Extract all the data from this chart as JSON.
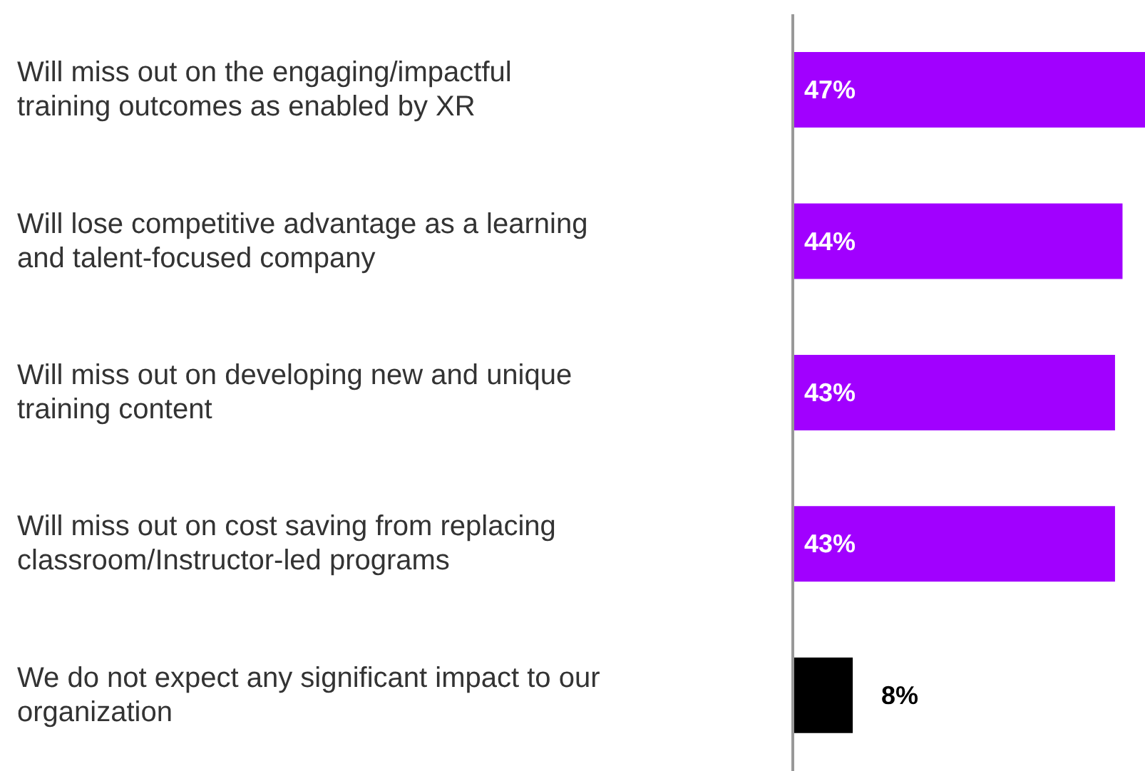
{
  "chart_data": {
    "type": "bar",
    "orientation": "horizontal",
    "categories": [
      "Will miss out on the engaging/impactful training outcomes as enabled by XR",
      "Will lose competitive advantage as a learning and talent-focused company",
      "Will miss out on developing new and unique training content",
      "Will miss out on cost saving from replacing classroom/Instructor-led programs",
      "We do not expect any significant impact to our organization"
    ],
    "values": [
      47,
      44,
      43,
      43,
      8
    ],
    "colors": [
      "#a100ff",
      "#a100ff",
      "#a100ff",
      "#a100ff",
      "#000000"
    ],
    "value_labels": [
      "47%",
      "44%",
      "43%",
      "43%",
      "8%"
    ]
  }
}
